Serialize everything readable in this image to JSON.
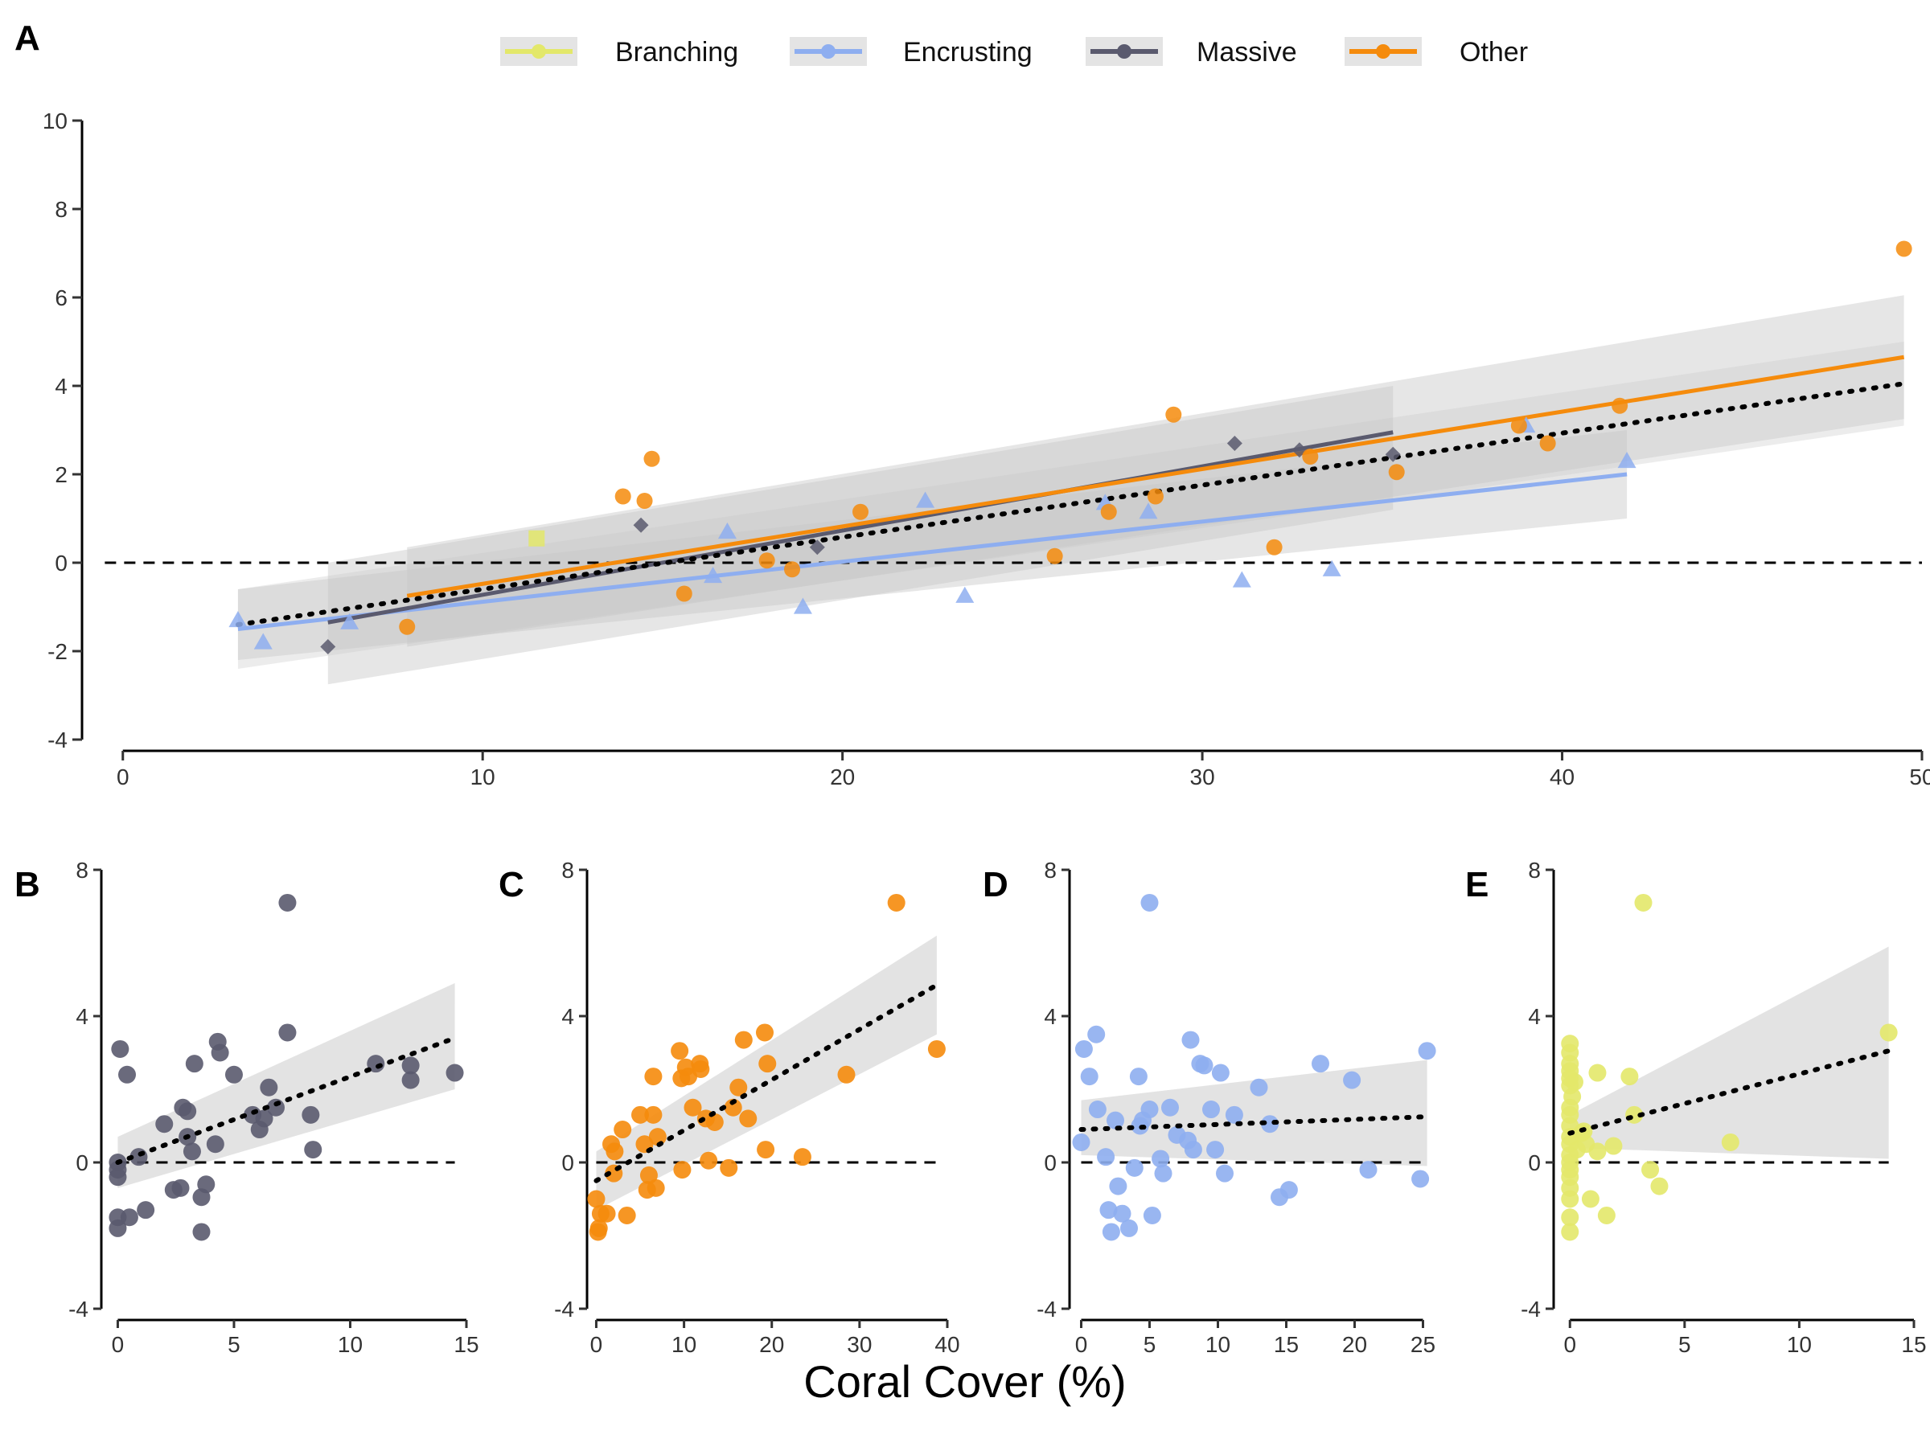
{
  "colors": {
    "Branching": "#e3e86a",
    "Encrusting": "#8eaef0",
    "Massive": "#5a5a6e",
    "Other": "#f58b0c",
    "band": "#c8c8c8"
  },
  "legend": {
    "position": "top-center",
    "items": [
      {
        "label": "Branching",
        "color": "#e3e86a",
        "marker": "square"
      },
      {
        "label": "Encrusting",
        "color": "#8eaef0",
        "marker": "triangle"
      },
      {
        "label": "Massive",
        "color": "#5a5a6e",
        "marker": "diamond"
      },
      {
        "label": "Other",
        "color": "#f58b0c",
        "marker": "circle"
      }
    ]
  },
  "x_axis_title": "Coral Cover (%)",
  "chart_data": [
    {
      "panel": "A",
      "type": "scatter",
      "xlim": [
        -1,
        50
      ],
      "ylim": [
        -4,
        10
      ],
      "xticks": [
        0,
        10,
        20,
        30,
        40,
        50
      ],
      "yticks": [
        -4,
        -2,
        0,
        2,
        4,
        6,
        8,
        10
      ],
      "reference_line_y": 0,
      "series": [
        {
          "name": "Branching",
          "marker": "square",
          "points": [
            [
              11.5,
              0.55
            ]
          ],
          "fit": null
        },
        {
          "name": "Encrusting",
          "marker": "triangle",
          "points": [
            [
              3.2,
              -1.3
            ],
            [
              3.9,
              -1.8
            ],
            [
              6.3,
              -1.35
            ],
            [
              16.4,
              -0.3
            ],
            [
              16.8,
              0.7
            ],
            [
              18.9,
              -1.0
            ],
            [
              22.3,
              1.4
            ],
            [
              23.4,
              -0.75
            ],
            [
              27.3,
              1.35
            ],
            [
              28.5,
              1.15
            ],
            [
              31.1,
              -0.4
            ],
            [
              33.6,
              -0.15
            ],
            [
              39.0,
              3.1
            ],
            [
              41.8,
              2.3
            ]
          ],
          "fit": {
            "x": [
              3.2,
              41.8
            ],
            "y": [
              -1.5,
              2.0
            ],
            "ci_low": [
              -2.2,
              1.0
            ],
            "ci_high": [
              -0.6,
              3.0
            ]
          }
        },
        {
          "name": "Massive",
          "marker": "diamond",
          "points": [
            [
              5.7,
              -1.9
            ],
            [
              14.4,
              0.85
            ],
            [
              19.3,
              0.35
            ],
            [
              30.9,
              2.7
            ],
            [
              32.7,
              2.55
            ],
            [
              35.3,
              2.45
            ]
          ],
          "fit": {
            "x": [
              5.7,
              35.3
            ],
            "y": [
              -1.35,
              2.95
            ],
            "ci_low": [
              -2.75,
              1.2
            ],
            "ci_high": [
              0.0,
              4.0
            ]
          }
        },
        {
          "name": "Other",
          "marker": "circle",
          "points": [
            [
              7.9,
              -1.45
            ],
            [
              13.9,
              1.5
            ],
            [
              14.5,
              1.4
            ],
            [
              14.7,
              2.35
            ],
            [
              15.6,
              -0.7
            ],
            [
              17.9,
              0.05
            ],
            [
              18.6,
              -0.15
            ],
            [
              20.5,
              1.15
            ],
            [
              25.9,
              0.15
            ],
            [
              27.4,
              1.15
            ],
            [
              28.7,
              1.5
            ],
            [
              29.2,
              3.35
            ],
            [
              32.0,
              0.35
            ],
            [
              33.0,
              2.4
            ],
            [
              35.4,
              2.05
            ],
            [
              38.8,
              3.1
            ],
            [
              39.6,
              2.7
            ],
            [
              41.6,
              3.55
            ],
            [
              49.5,
              7.1
            ]
          ],
          "fit": {
            "x": [
              7.9,
              49.5
            ],
            "y": [
              -0.75,
              4.65
            ],
            "ci_low": [
              -1.9,
              3.25
            ],
            "ci_high": [
              0.35,
              6.05
            ]
          }
        }
      ],
      "overall_fit": {
        "x": [
          3.2,
          49.5
        ],
        "y": [
          -1.4,
          4.05
        ],
        "ci_low": [
          -2.4,
          3.1
        ],
        "ci_high": [
          -0.6,
          5.0
        ]
      }
    },
    {
      "panel": "B",
      "type": "scatter",
      "color_series": "Massive",
      "xlim": [
        -0.5,
        15
      ],
      "ylim": [
        -4,
        8
      ],
      "xticks": [
        0,
        5,
        10,
        15
      ],
      "yticks": [
        -4,
        0,
        4,
        8
      ],
      "reference_line_y": 0,
      "points": [
        [
          0,
          0
        ],
        [
          0,
          -0.2
        ],
        [
          0,
          -0.4
        ],
        [
          0,
          -1.5
        ],
        [
          0,
          -1.8
        ],
        [
          0.1,
          3.1
        ],
        [
          0.4,
          2.4
        ],
        [
          0.5,
          -1.5
        ],
        [
          0.9,
          0.15
        ],
        [
          1.2,
          -1.3
        ],
        [
          2.0,
          1.05
        ],
        [
          2.4,
          -0.75
        ],
        [
          2.7,
          -0.7
        ],
        [
          2.8,
          1.5
        ],
        [
          3.0,
          1.4
        ],
        [
          3.0,
          0.7
        ],
        [
          3.2,
          0.3
        ],
        [
          3.3,
          2.7
        ],
        [
          3.6,
          -1.9
        ],
        [
          3.6,
          -0.95
        ],
        [
          3.8,
          -0.6
        ],
        [
          4.2,
          0.5
        ],
        [
          4.3,
          3.3
        ],
        [
          4.4,
          3.0
        ],
        [
          5.0,
          2.4
        ],
        [
          5.8,
          1.3
        ],
        [
          6.1,
          0.9
        ],
        [
          6.3,
          1.2
        ],
        [
          6.5,
          2.05
        ],
        [
          6.8,
          1.5
        ],
        [
          7.3,
          3.55
        ],
        [
          7.3,
          7.1
        ],
        [
          8.3,
          1.3
        ],
        [
          8.4,
          0.35
        ],
        [
          11.1,
          2.7
        ],
        [
          12.6,
          2.65
        ],
        [
          12.6,
          2.25
        ],
        [
          14.5,
          2.45
        ]
      ],
      "fit": {
        "x": [
          0,
          14.5
        ],
        "y": [
          0,
          3.4
        ],
        "ci_low": [
          -0.7,
          2.0
        ],
        "ci_high": [
          0.7,
          4.9
        ]
      }
    },
    {
      "panel": "C",
      "type": "scatter",
      "color_series": "Other",
      "xlim": [
        -0.5,
        40
      ],
      "ylim": [
        -4,
        8
      ],
      "xticks": [
        0,
        10,
        20,
        30,
        40
      ],
      "yticks": [
        -4,
        0,
        4,
        8
      ],
      "reference_line_y": 0,
      "points": [
        [
          0,
          -1.0
        ],
        [
          0.2,
          -1.9
        ],
        [
          0.3,
          -1.8
        ],
        [
          0.5,
          -1.4
        ],
        [
          1.2,
          -1.4
        ],
        [
          1.7,
          0.5
        ],
        [
          2.0,
          -0.3
        ],
        [
          2.1,
          0.3
        ],
        [
          3.0,
          0.9
        ],
        [
          3.5,
          -1.45
        ],
        [
          5.0,
          1.3
        ],
        [
          5.5,
          0.5
        ],
        [
          5.8,
          -0.75
        ],
        [
          6.0,
          -0.35
        ],
        [
          6.5,
          2.35
        ],
        [
          6.5,
          1.3
        ],
        [
          6.8,
          -0.7
        ],
        [
          7.0,
          0.7
        ],
        [
          9.5,
          3.05
        ],
        [
          9.7,
          2.3
        ],
        [
          9.8,
          -0.2
        ],
        [
          10.2,
          2.6
        ],
        [
          10.5,
          2.35
        ],
        [
          11.0,
          1.5
        ],
        [
          11.8,
          2.7
        ],
        [
          11.9,
          2.55
        ],
        [
          12.5,
          1.2
        ],
        [
          12.8,
          0.05
        ],
        [
          13.5,
          1.1
        ],
        [
          15.1,
          -0.15
        ],
        [
          15.6,
          1.5
        ],
        [
          16.2,
          2.05
        ],
        [
          16.8,
          3.35
        ],
        [
          17.3,
          1.2
        ],
        [
          19.2,
          3.55
        ],
        [
          19.3,
          0.35
        ],
        [
          19.5,
          2.7
        ],
        [
          23.5,
          0.15
        ],
        [
          28.5,
          2.4
        ],
        [
          34.2,
          7.1
        ],
        [
          38.8,
          3.1
        ]
      ],
      "fit": {
        "x": [
          0,
          38.8
        ],
        "y": [
          -0.5,
          4.85
        ],
        "ci_low": [
          -1.3,
          3.5
        ],
        "ci_high": [
          0.3,
          6.2
        ]
      }
    },
    {
      "panel": "D",
      "type": "scatter",
      "color_series": "Encrusting",
      "xlim": [
        -0.5,
        25.5
      ],
      "ylim": [
        -4,
        8
      ],
      "xticks": [
        0,
        5,
        10,
        15,
        20,
        25
      ],
      "yticks": [
        -4,
        0,
        4,
        8
      ],
      "reference_line_y": 0,
      "points": [
        [
          0,
          0.55
        ],
        [
          0.2,
          3.1
        ],
        [
          0.6,
          2.35
        ],
        [
          1.1,
          3.5
        ],
        [
          1.2,
          1.45
        ],
        [
          1.8,
          0.15
        ],
        [
          2.0,
          -1.3
        ],
        [
          2.2,
          -1.9
        ],
        [
          2.5,
          1.15
        ],
        [
          2.7,
          -0.65
        ],
        [
          3.0,
          -1.4
        ],
        [
          3.5,
          -1.8
        ],
        [
          3.9,
          -0.15
        ],
        [
          4.2,
          2.35
        ],
        [
          4.3,
          1.0
        ],
        [
          4.5,
          1.15
        ],
        [
          5.0,
          1.45
        ],
        [
          5.0,
          7.1
        ],
        [
          5.2,
          -1.45
        ],
        [
          5.8,
          0.1
        ],
        [
          6.0,
          -0.3
        ],
        [
          6.5,
          1.5
        ],
        [
          7.0,
          0.75
        ],
        [
          7.8,
          0.6
        ],
        [
          8.0,
          3.35
        ],
        [
          8.2,
          0.35
        ],
        [
          8.7,
          2.7
        ],
        [
          9.0,
          2.65
        ],
        [
          9.5,
          1.45
        ],
        [
          9.8,
          0.35
        ],
        [
          10.2,
          2.45
        ],
        [
          10.5,
          -0.3
        ],
        [
          11.2,
          1.3
        ],
        [
          13.0,
          2.05
        ],
        [
          13.8,
          1.05
        ],
        [
          14.5,
          -0.95
        ],
        [
          15.2,
          -0.75
        ],
        [
          17.5,
          2.7
        ],
        [
          19.8,
          2.25
        ],
        [
          21.0,
          -0.2
        ],
        [
          24.8,
          -0.45
        ],
        [
          25.3,
          3.05
        ]
      ],
      "fit": {
        "x": [
          0,
          25.3
        ],
        "y": [
          0.9,
          1.25
        ],
        "ci_low": [
          0.2,
          -0.1
        ],
        "ci_high": [
          1.7,
          2.8
        ]
      }
    },
    {
      "panel": "E",
      "type": "scatter",
      "color_series": "Branching",
      "xlim": [
        -0.5,
        15
      ],
      "ylim": [
        -4,
        8
      ],
      "xticks": [
        0,
        5,
        10,
        15
      ],
      "yticks": [
        -4,
        0,
        4,
        8
      ],
      "reference_line_y": 0,
      "points": [
        [
          0,
          3.25
        ],
        [
          0,
          3.0
        ],
        [
          0,
          2.7
        ],
        [
          0,
          2.5
        ],
        [
          0,
          2.3
        ],
        [
          0,
          2.1
        ],
        [
          0,
          1.5
        ],
        [
          0,
          1.3
        ],
        [
          0,
          1.0
        ],
        [
          0,
          0.7
        ],
        [
          0,
          0.5
        ],
        [
          0,
          0.2
        ],
        [
          0,
          0
        ],
        [
          0,
          -0.2
        ],
        [
          0,
          -0.4
        ],
        [
          0,
          -0.7
        ],
        [
          0,
          -1.0
        ],
        [
          0,
          -1.5
        ],
        [
          0,
          -1.9
        ],
        [
          0.1,
          1.8
        ],
        [
          0.2,
          2.2
        ],
        [
          0.3,
          0.35
        ],
        [
          0.5,
          0.8
        ],
        [
          0.6,
          0.85
        ],
        [
          0.7,
          0.5
        ],
        [
          0.9,
          -1.0
        ],
        [
          1.2,
          0.3
        ],
        [
          1.2,
          2.45
        ],
        [
          1.6,
          -1.45
        ],
        [
          1.9,
          0.45
        ],
        [
          2.6,
          2.35
        ],
        [
          2.8,
          1.3
        ],
        [
          3.2,
          7.1
        ],
        [
          3.5,
          -0.2
        ],
        [
          3.9,
          -0.65
        ],
        [
          7.0,
          0.55
        ],
        [
          13.9,
          3.55
        ]
      ],
      "fit": {
        "x": [
          0,
          13.9
        ],
        "y": [
          0.8,
          3.05
        ],
        "ci_low": [
          0.4,
          0.1
        ],
        "ci_high": [
          1.3,
          5.9
        ]
      }
    }
  ]
}
